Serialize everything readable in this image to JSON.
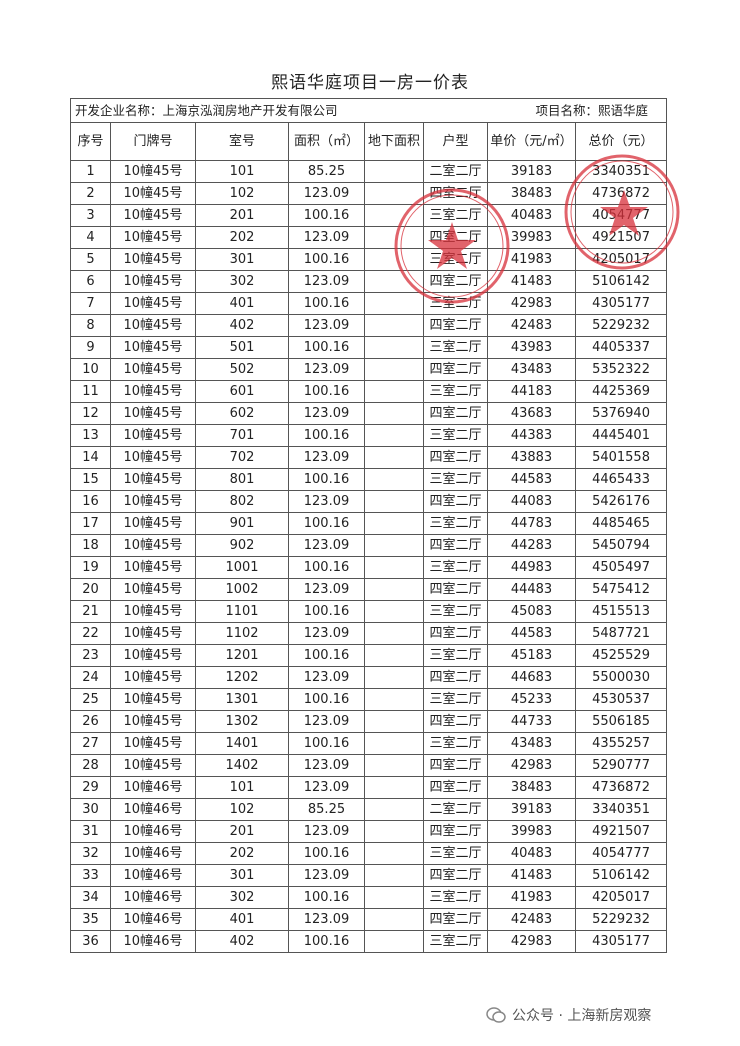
{
  "title": "熙语华庭项目一房一价表",
  "developer_label": "开发企业名称：上海京泓润房地产开发有限公司",
  "project_label": "项目名称：熙语华庭",
  "columns": [
    "序号",
    "门牌号",
    "室号",
    "面积（㎡）",
    "地下面积",
    "户型",
    "单价（元/㎡）",
    "总价（元）"
  ],
  "rows": [
    [
      "1",
      "10幢45号",
      "101",
      "85.25",
      "",
      "二室二厅",
      "39183",
      "3340351"
    ],
    [
      "2",
      "10幢45号",
      "102",
      "123.09",
      "",
      "四室二厅",
      "38483",
      "4736872"
    ],
    [
      "3",
      "10幢45号",
      "201",
      "100.16",
      "",
      "三室二厅",
      "40483",
      "4054777"
    ],
    [
      "4",
      "10幢45号",
      "202",
      "123.09",
      "",
      "四室二厅",
      "39983",
      "4921507"
    ],
    [
      "5",
      "10幢45号",
      "301",
      "100.16",
      "",
      "三室二厅",
      "41983",
      "4205017"
    ],
    [
      "6",
      "10幢45号",
      "302",
      "123.09",
      "",
      "四室二厅",
      "41483",
      "5106142"
    ],
    [
      "7",
      "10幢45号",
      "401",
      "100.16",
      "",
      "三室二厅",
      "42983",
      "4305177"
    ],
    [
      "8",
      "10幢45号",
      "402",
      "123.09",
      "",
      "四室二厅",
      "42483",
      "5229232"
    ],
    [
      "9",
      "10幢45号",
      "501",
      "100.16",
      "",
      "三室二厅",
      "43983",
      "4405337"
    ],
    [
      "10",
      "10幢45号",
      "502",
      "123.09",
      "",
      "四室二厅",
      "43483",
      "5352322"
    ],
    [
      "11",
      "10幢45号",
      "601",
      "100.16",
      "",
      "三室二厅",
      "44183",
      "4425369"
    ],
    [
      "12",
      "10幢45号",
      "602",
      "123.09",
      "",
      "四室二厅",
      "43683",
      "5376940"
    ],
    [
      "13",
      "10幢45号",
      "701",
      "100.16",
      "",
      "三室二厅",
      "44383",
      "4445401"
    ],
    [
      "14",
      "10幢45号",
      "702",
      "123.09",
      "",
      "四室二厅",
      "43883",
      "5401558"
    ],
    [
      "15",
      "10幢45号",
      "801",
      "100.16",
      "",
      "三室二厅",
      "44583",
      "4465433"
    ],
    [
      "16",
      "10幢45号",
      "802",
      "123.09",
      "",
      "四室二厅",
      "44083",
      "5426176"
    ],
    [
      "17",
      "10幢45号",
      "901",
      "100.16",
      "",
      "三室二厅",
      "44783",
      "4485465"
    ],
    [
      "18",
      "10幢45号",
      "902",
      "123.09",
      "",
      "四室二厅",
      "44283",
      "5450794"
    ],
    [
      "19",
      "10幢45号",
      "1001",
      "100.16",
      "",
      "三室二厅",
      "44983",
      "4505497"
    ],
    [
      "20",
      "10幢45号",
      "1002",
      "123.09",
      "",
      "四室二厅",
      "44483",
      "5475412"
    ],
    [
      "21",
      "10幢45号",
      "1101",
      "100.16",
      "",
      "三室二厅",
      "45083",
      "4515513"
    ],
    [
      "22",
      "10幢45号",
      "1102",
      "123.09",
      "",
      "四室二厅",
      "44583",
      "5487721"
    ],
    [
      "23",
      "10幢45号",
      "1201",
      "100.16",
      "",
      "三室二厅",
      "45183",
      "4525529"
    ],
    [
      "24",
      "10幢45号",
      "1202",
      "123.09",
      "",
      "四室二厅",
      "44683",
      "5500030"
    ],
    [
      "25",
      "10幢45号",
      "1301",
      "100.16",
      "",
      "三室二厅",
      "45233",
      "4530537"
    ],
    [
      "26",
      "10幢45号",
      "1302",
      "123.09",
      "",
      "四室二厅",
      "44733",
      "5506185"
    ],
    [
      "27",
      "10幢45号",
      "1401",
      "100.16",
      "",
      "三室二厅",
      "43483",
      "4355257"
    ],
    [
      "28",
      "10幢45号",
      "1402",
      "123.09",
      "",
      "四室二厅",
      "42983",
      "5290777"
    ],
    [
      "29",
      "10幢46号",
      "101",
      "123.09",
      "",
      "四室二厅",
      "38483",
      "4736872"
    ],
    [
      "30",
      "10幢46号",
      "102",
      "85.25",
      "",
      "二室二厅",
      "39183",
      "3340351"
    ],
    [
      "31",
      "10幢46号",
      "201",
      "123.09",
      "",
      "四室二厅",
      "39983",
      "4921507"
    ],
    [
      "32",
      "10幢46号",
      "202",
      "100.16",
      "",
      "三室二厅",
      "40483",
      "4054777"
    ],
    [
      "33",
      "10幢46号",
      "301",
      "123.09",
      "",
      "四室二厅",
      "41483",
      "5106142"
    ],
    [
      "34",
      "10幢46号",
      "302",
      "100.16",
      "",
      "三室二厅",
      "41983",
      "4205017"
    ],
    [
      "35",
      "10幢46号",
      "401",
      "123.09",
      "",
      "四室二厅",
      "42483",
      "5229232"
    ],
    [
      "36",
      "10幢46号",
      "402",
      "100.16",
      "",
      "三室二厅",
      "42983",
      "4305177"
    ]
  ],
  "stamp_color": "#d8303a",
  "footer": "公众号 · 上海新房观察"
}
